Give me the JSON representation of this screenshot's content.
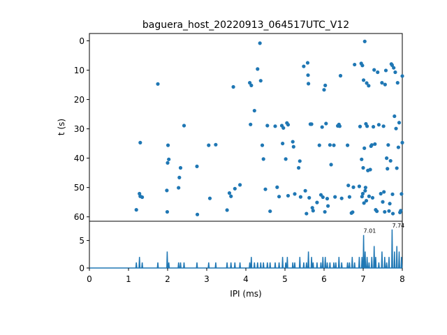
{
  "chart_data": [
    {
      "type": "scatter",
      "title": "baguera_host_20220913_064517UTC_V12",
      "ylabel": "t (s)",
      "xlim": [
        0,
        8
      ],
      "ylim": [
        61.5,
        -2.5
      ],
      "y_inverted": true,
      "yticks": [
        0,
        10,
        20,
        30,
        40,
        50,
        60
      ],
      "color": "#1f77b4",
      "grid": false,
      "points": [
        [
          1.2,
          57.6
        ],
        [
          1.28,
          52.1
        ],
        [
          1.3,
          53.0
        ],
        [
          1.3,
          34.7
        ],
        [
          1.35,
          53.3
        ],
        [
          1.75,
          14.7
        ],
        [
          1.98,
          51.0
        ],
        [
          1.99,
          58.3
        ],
        [
          2.0,
          41.6
        ],
        [
          2.01,
          35.6
        ],
        [
          2.03,
          40.4
        ],
        [
          2.28,
          50.1
        ],
        [
          2.3,
          46.6
        ],
        [
          2.33,
          43.3
        ],
        [
          2.42,
          28.9
        ],
        [
          2.75,
          42.8
        ],
        [
          2.76,
          59.2
        ],
        [
          3.05,
          35.6
        ],
        [
          3.08,
          53.7
        ],
        [
          3.23,
          35.4
        ],
        [
          3.52,
          57.7
        ],
        [
          3.58,
          51.9
        ],
        [
          3.62,
          53.0
        ],
        [
          3.68,
          15.7
        ],
        [
          3.72,
          50.4
        ],
        [
          3.85,
          49.1
        ],
        [
          4.1,
          14.3
        ],
        [
          4.12,
          28.5
        ],
        [
          4.14,
          15.2
        ],
        [
          4.22,
          23.8
        ],
        [
          4.3,
          9.6
        ],
        [
          4.36,
          0.8
        ],
        [
          4.38,
          13.6
        ],
        [
          4.42,
          35.6
        ],
        [
          4.45,
          40.3
        ],
        [
          4.5,
          50.6
        ],
        [
          4.55,
          28.9
        ],
        [
          4.62,
          58.1
        ],
        [
          4.75,
          29.1
        ],
        [
          4.8,
          49.9
        ],
        [
          4.85,
          53.1
        ],
        [
          4.92,
          28.9
        ],
        [
          4.94,
          35.0
        ],
        [
          4.96,
          29.7
        ],
        [
          5.02,
          40.3
        ],
        [
          5.05,
          28.0
        ],
        [
          5.08,
          28.6
        ],
        [
          5.08,
          52.8
        ],
        [
          5.2,
          34.4
        ],
        [
          5.22,
          36.1
        ],
        [
          5.25,
          52.2
        ],
        [
          5.35,
          43.3
        ],
        [
          5.38,
          41.0
        ],
        [
          5.4,
          53.2
        ],
        [
          5.48,
          8.7
        ],
        [
          5.52,
          51.1
        ],
        [
          5.55,
          58.9
        ],
        [
          5.58,
          7.5
        ],
        [
          5.59,
          11.7
        ],
        [
          5.6,
          14.6
        ],
        [
          5.62,
          53.5
        ],
        [
          5.65,
          28.4
        ],
        [
          5.68,
          28.4
        ],
        [
          5.7,
          56.9
        ],
        [
          5.72,
          57.9
        ],
        [
          5.82,
          55.1
        ],
        [
          5.88,
          35.6
        ],
        [
          5.92,
          52.5
        ],
        [
          5.95,
          29.4
        ],
        [
          5.97,
          53.3
        ],
        [
          6.0,
          16.7
        ],
        [
          6.02,
          58.3
        ],
        [
          6.03,
          15.2
        ],
        [
          6.05,
          28.2
        ],
        [
          6.08,
          53.8
        ],
        [
          6.1,
          56.3
        ],
        [
          6.15,
          35.5
        ],
        [
          6.18,
          42.2
        ],
        [
          6.25,
          35.6
        ],
        [
          6.28,
          53.2
        ],
        [
          6.35,
          29.0
        ],
        [
          6.38,
          28.5
        ],
        [
          6.4,
          29.1
        ],
        [
          6.42,
          11.9
        ],
        [
          6.45,
          53.7
        ],
        [
          6.6,
          35.6
        ],
        [
          6.62,
          49.3
        ],
        [
          6.65,
          53.2
        ],
        [
          6.7,
          58.7
        ],
        [
          6.73,
          58.4
        ],
        [
          6.75,
          49.9
        ],
        [
          6.78,
          8.1
        ],
        [
          6.9,
          49.6
        ],
        [
          6.92,
          29.2
        ],
        [
          6.95,
          7.7
        ],
        [
          6.96,
          40.4
        ],
        [
          6.97,
          53.1
        ],
        [
          6.98,
          8.4
        ],
        [
          6.99,
          52.1
        ],
        [
          7.0,
          43.3
        ],
        [
          7.01,
          13.4
        ],
        [
          7.02,
          55.3
        ],
        [
          7.03,
          36.6
        ],
        [
          7.04,
          0.2
        ],
        [
          7.05,
          51.1
        ],
        [
          7.06,
          50.0
        ],
        [
          7.07,
          28.3
        ],
        [
          7.08,
          54.5
        ],
        [
          7.09,
          14.4
        ],
        [
          7.1,
          29.1
        ],
        [
          7.12,
          44.2
        ],
        [
          7.14,
          15.3
        ],
        [
          7.15,
          53.0
        ],
        [
          7.18,
          43.9
        ],
        [
          7.2,
          35.9
        ],
        [
          7.22,
          35.5
        ],
        [
          7.24,
          53.5
        ],
        [
          7.26,
          29.3
        ],
        [
          7.28,
          9.9
        ],
        [
          7.3,
          35.2
        ],
        [
          7.32,
          57.6
        ],
        [
          7.35,
          58.1
        ],
        [
          7.37,
          10.7
        ],
        [
          7.4,
          28.6
        ],
        [
          7.45,
          52.1
        ],
        [
          7.48,
          14.3
        ],
        [
          7.5,
          54.9
        ],
        [
          7.52,
          29.1
        ],
        [
          7.53,
          51.5
        ],
        [
          7.55,
          58.3
        ],
        [
          7.56,
          14.9
        ],
        [
          7.58,
          10.1
        ],
        [
          7.6,
          40.0
        ],
        [
          7.62,
          43.6
        ],
        [
          7.64,
          35.5
        ],
        [
          7.66,
          58.0
        ],
        [
          7.68,
          55.5
        ],
        [
          7.7,
          40.9
        ],
        [
          7.72,
          7.9
        ],
        [
          7.74,
          8.3
        ],
        [
          7.75,
          52.3
        ],
        [
          7.76,
          58.9
        ],
        [
          7.78,
          9.2
        ],
        [
          7.8,
          25.7
        ],
        [
          7.82,
          10.7
        ],
        [
          7.84,
          29.9
        ],
        [
          7.86,
          43.4
        ],
        [
          7.88,
          14.3
        ],
        [
          7.9,
          36.3
        ],
        [
          7.92,
          27.9
        ],
        [
          7.94,
          58.5
        ],
        [
          7.96,
          57.9
        ],
        [
          7.98,
          52.2
        ],
        [
          8.0,
          12.0
        ],
        [
          8.0,
          34.7
        ]
      ]
    },
    {
      "type": "line",
      "xlabel": "IPI (ms)",
      "xlim": [
        0,
        8
      ],
      "ylim": [
        0,
        8.5
      ],
      "xticks": [
        0,
        1,
        2,
        3,
        4,
        5,
        6,
        7,
        8
      ],
      "yticks": [
        0,
        5
      ],
      "color": "#1f77b4",
      "annotations": [
        {
          "x": 7.01,
          "y": 6,
          "text": "7.01"
        },
        {
          "x": 7.74,
          "y": 7,
          "text": "7.74"
        }
      ],
      "peaks": [
        [
          1.2,
          1
        ],
        [
          1.28,
          2
        ],
        [
          1.35,
          1
        ],
        [
          1.75,
          1
        ],
        [
          1.99,
          3
        ],
        [
          2.03,
          1
        ],
        [
          2.28,
          1
        ],
        [
          2.33,
          1
        ],
        [
          2.42,
          1
        ],
        [
          2.75,
          1
        ],
        [
          3.05,
          1
        ],
        [
          3.23,
          1
        ],
        [
          3.52,
          1
        ],
        [
          3.62,
          1
        ],
        [
          3.72,
          1
        ],
        [
          3.85,
          1
        ],
        [
          4.1,
          1
        ],
        [
          4.14,
          2
        ],
        [
          4.22,
          1
        ],
        [
          4.3,
          1
        ],
        [
          4.38,
          1
        ],
        [
          4.45,
          1
        ],
        [
          4.55,
          1
        ],
        [
          4.62,
          1
        ],
        [
          4.75,
          1
        ],
        [
          4.85,
          1
        ],
        [
          4.94,
          2
        ],
        [
          5.02,
          1
        ],
        [
          5.06,
          2
        ],
        [
          5.2,
          1
        ],
        [
          5.25,
          1
        ],
        [
          5.38,
          2
        ],
        [
          5.48,
          1
        ],
        [
          5.55,
          1
        ],
        [
          5.6,
          3
        ],
        [
          5.68,
          2
        ],
        [
          5.72,
          1
        ],
        [
          5.82,
          1
        ],
        [
          5.92,
          1
        ],
        [
          5.97,
          2
        ],
        [
          6.03,
          2
        ],
        [
          6.08,
          1
        ],
        [
          6.15,
          1
        ],
        [
          6.25,
          1
        ],
        [
          6.3,
          1
        ],
        [
          6.38,
          2
        ],
        [
          6.45,
          1
        ],
        [
          6.6,
          1
        ],
        [
          6.65,
          1
        ],
        [
          6.72,
          2
        ],
        [
          6.78,
          1
        ],
        [
          6.9,
          2
        ],
        [
          6.97,
          2
        ],
        [
          7.01,
          6
        ],
        [
          7.05,
          3
        ],
        [
          7.1,
          2
        ],
        [
          7.15,
          1
        ],
        [
          7.22,
          2
        ],
        [
          7.28,
          4
        ],
        [
          7.32,
          2
        ],
        [
          7.4,
          1
        ],
        [
          7.48,
          3
        ],
        [
          7.55,
          2
        ],
        [
          7.6,
          1
        ],
        [
          7.66,
          2
        ],
        [
          7.74,
          7
        ],
        [
          7.8,
          3
        ],
        [
          7.86,
          4
        ],
        [
          7.92,
          3
        ],
        [
          7.98,
          2
        ]
      ]
    }
  ]
}
